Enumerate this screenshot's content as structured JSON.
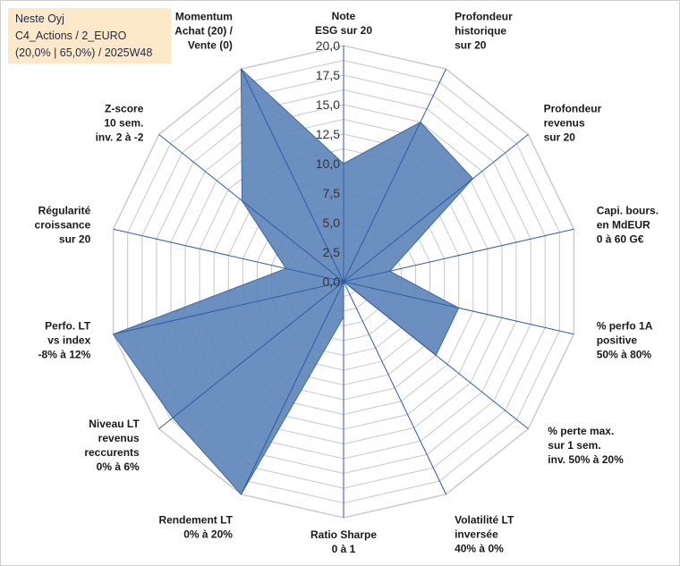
{
  "header": {
    "line1": "Neste Oyj",
    "line2": "C4_Actions / 2_EURO",
    "line3": "(20,0% | 65,0%) / 2025W48"
  },
  "colors": {
    "fill": "#5b84b8",
    "stroke": "#3f6aa3",
    "grid": "#c8c8c8",
    "axis": "#2f5ba8",
    "title_bg": "#fde9c9"
  },
  "chart_data": {
    "type": "radar",
    "title": "Neste Oyj",
    "rlim": [
      0,
      20
    ],
    "ticks": [
      "0,0",
      "2,5",
      "5,0",
      "7,5",
      "10,0",
      "12,5",
      "15,0",
      "17,5",
      "20,0"
    ],
    "tick_values": [
      0,
      2.5,
      5,
      7.5,
      10,
      12.5,
      15,
      17.5,
      20
    ],
    "grid": true,
    "categories": [
      [
        "Note",
        "ESG sur 20"
      ],
      [
        "Profondeur",
        "historique",
        "sur 20"
      ],
      [
        "Profondeur",
        "revenus",
        "sur 20"
      ],
      [
        "Capi. bours.",
        "en MdEUR",
        "0 à 60 G€"
      ],
      [
        "% perfo 1A",
        "positive",
        "50% à 80%"
      ],
      [
        "% perte max.",
        "sur 1 sem.",
        "inv. 50% à 20%"
      ],
      [
        "Volatilité LT",
        "inversée",
        "40% à 0%"
      ],
      [
        "Ratio Sharpe",
        "0 à 1"
      ],
      [
        "Rendement LT",
        "0% à 20%"
      ],
      [
        "Niveau LT",
        "revenus",
        "reccurents",
        "0% à 6%"
      ],
      [
        "Perfo. LT",
        "vs index",
        "-8% à 12%"
      ],
      [
        "Régularité",
        "croissance",
        "sur 20"
      ],
      [
        "Z-score",
        "10 sem.",
        "inv. 2 à -2"
      ],
      [
        "Momentum",
        "Achat (20) /",
        "Vente (0)"
      ]
    ],
    "series": [
      {
        "name": "Neste Oyj",
        "values": [
          10,
          15,
          14,
          4,
          10,
          10,
          0,
          3,
          20,
          18.5,
          20,
          5,
          11,
          20
        ]
      }
    ]
  }
}
